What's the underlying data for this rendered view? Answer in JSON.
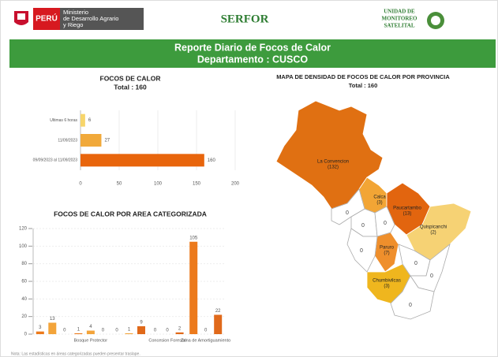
{
  "header": {
    "country": "PERÚ",
    "ministry": [
      "Ministerio",
      "de Desarrollo Agrario",
      "y Riego"
    ],
    "agency": "SERFOR",
    "unit": [
      "UNIDAD DE",
      "MONITOREO",
      "SATELITAL"
    ]
  },
  "banner": {
    "title": "Reporte Diario de Focos de Calor",
    "subtitle": "Departamento : CUSCO"
  },
  "footnote": "Nota: Las estadísticas en áreas categorizadas pueden presentar traslape.",
  "chart_data": [
    {
      "type": "hbar",
      "title": "FOCOS DE CALOR",
      "subtitle": "Total : 160",
      "categories": [
        "Ultimas 6 horas",
        "11/09/2023",
        "09/09/2023 al 11/09/2023"
      ],
      "values": [
        6,
        27,
        160
      ],
      "colors": [
        "#f7d56b",
        "#f1a93a",
        "#e8650c"
      ],
      "xlim": [
        0,
        200
      ],
      "xticks": [
        0,
        50,
        100,
        150,
        200
      ],
      "grid": true
    },
    {
      "type": "bar",
      "title": "FOCOS DE CALOR POR AREA CATEGORIZADA",
      "categories": [
        null,
        "Bosque Protector",
        null,
        "Concesion Forestal",
        "Zona de Amortiguamiento"
      ],
      "series": [
        {
          "color": "#ec7a1c",
          "values": [
            3,
            1,
            0,
            0,
            105
          ]
        },
        {
          "color": "#f3a43a",
          "values": [
            13,
            4,
            1,
            0,
            0
          ]
        },
        {
          "color": "#e0691a",
          "values": [
            0,
            0,
            9,
            2,
            22
          ]
        }
      ],
      "ylim": [
        0,
        120
      ],
      "yticks": [
        0,
        20,
        40,
        60,
        80,
        100,
        120
      ],
      "grid": true
    },
    {
      "type": "map",
      "title": "MAPA DE DENSIDAD DE FOCOS DE CALOR POR PROVINCIA",
      "subtitle": "Total : 160",
      "regions": [
        {
          "name": "La Convencion",
          "value": 132,
          "value_label": "(132)",
          "color": "#e07012"
        },
        {
          "name": "Calca",
          "value": 3,
          "value_label": "(3)",
          "color": "#f2a535"
        },
        {
          "name": "Paucartambo",
          "value": 13,
          "value_label": "(13)",
          "color": "#e2650f"
        },
        {
          "name": "Quispicanchi",
          "value": 2,
          "value_label": "(2)",
          "color": "#f6d274"
        },
        {
          "name": "Paruro",
          "value": 7,
          "value_label": "(7)",
          "color": "#ef8f2c"
        },
        {
          "name": "Chumbivilcas",
          "value": 3,
          "value_label": "(3)",
          "color": "#efb61e"
        },
        {
          "name": null,
          "value": 0,
          "color": "#ffffff"
        },
        {
          "name": null,
          "value": 0,
          "color": "#ffffff"
        },
        {
          "name": null,
          "value": 0,
          "color": "#ffffff"
        },
        {
          "name": null,
          "value": 0,
          "color": "#ffffff"
        },
        {
          "name": null,
          "value": 0,
          "color": "#ffffff"
        },
        {
          "name": null,
          "value": 0,
          "color": "#ffffff"
        },
        {
          "name": null,
          "value": 0,
          "color": "#ffffff"
        }
      ]
    }
  ]
}
